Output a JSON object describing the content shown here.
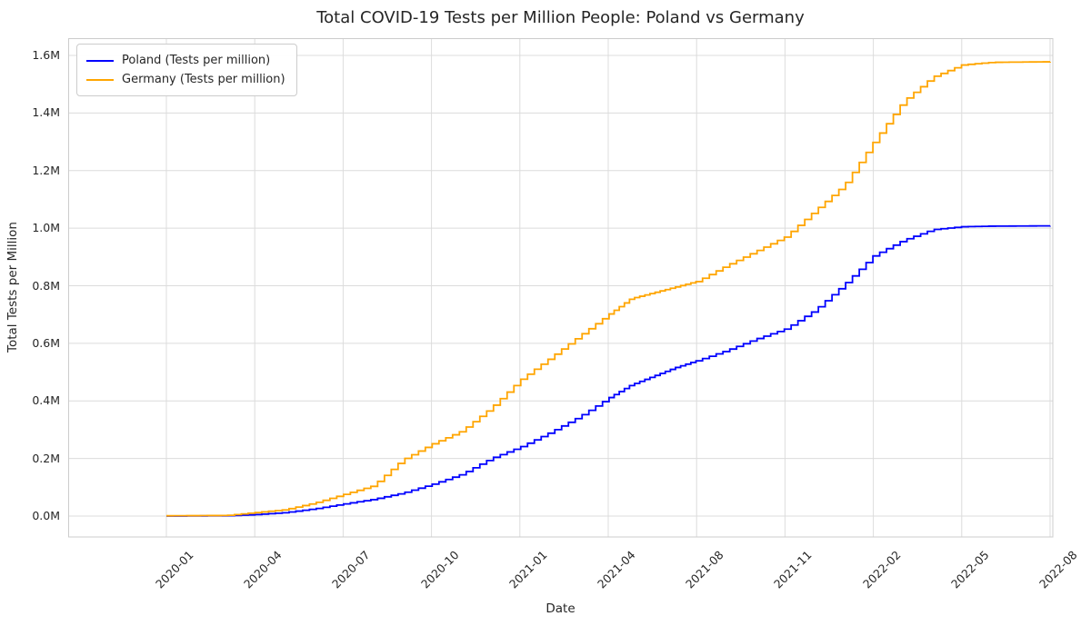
{
  "chart_data": {
    "type": "line",
    "title": "Total COVID-19 Tests per Million People: Poland vs Germany",
    "xlabel": "Date",
    "ylabel": "Total Tests per Million",
    "grid": true,
    "legend_position": "upper left",
    "line_style": "weekly cumulative steps",
    "ylim_millions": [
      -0.07,
      1.66
    ],
    "y_ticks": [
      {
        "label": "0.0M",
        "value": 0.0
      },
      {
        "label": "0.2M",
        "value": 0.2
      },
      {
        "label": "0.4M",
        "value": 0.4
      },
      {
        "label": "0.6M",
        "value": 0.6
      },
      {
        "label": "0.8M",
        "value": 0.8
      },
      {
        "label": "1.0M",
        "value": 1.0
      },
      {
        "label": "1.2M",
        "value": 1.2
      },
      {
        "label": "1.4M",
        "value": 1.4
      },
      {
        "label": "1.6M",
        "value": 1.6
      }
    ],
    "x_ticks": [
      {
        "label": "2020-01",
        "months": 0
      },
      {
        "label": "2020-04",
        "months": 3
      },
      {
        "label": "2020-07",
        "months": 6
      },
      {
        "label": "2020-10",
        "months": 9
      },
      {
        "label": "2021-01",
        "months": 12
      },
      {
        "label": "2021-04",
        "months": 15
      },
      {
        "label": "2021-08",
        "months": 19
      },
      {
        "label": "2021-11",
        "months": 22
      },
      {
        "label": "2022-02",
        "months": 25
      },
      {
        "label": "2022-05",
        "months": 28
      },
      {
        "label": "2022-08",
        "months": 31
      }
    ],
    "series": [
      {
        "name": "Poland (Tests per million)",
        "color": "#0000ff",
        "unit": "tests per million (millions)",
        "points": [
          [
            "2020-01",
            0.0
          ],
          [
            "2020-03",
            0.001
          ],
          [
            "2020-04",
            0.005
          ],
          [
            "2020-05",
            0.012
          ],
          [
            "2020-06",
            0.025
          ],
          [
            "2020-07",
            0.042
          ],
          [
            "2020-08",
            0.058
          ],
          [
            "2020-09",
            0.08
          ],
          [
            "2020-10",
            0.11
          ],
          [
            "2020-11",
            0.145
          ],
          [
            "2020-12",
            0.2
          ],
          [
            "2021-01",
            0.24
          ],
          [
            "2021-02",
            0.29
          ],
          [
            "2021-03",
            0.345
          ],
          [
            "2021-04",
            0.41
          ],
          [
            "2021-05",
            0.455
          ],
          [
            "2021-06",
            0.485
          ],
          [
            "2021-07",
            0.515
          ],
          [
            "2021-08",
            0.54
          ],
          [
            "2021-09",
            0.575
          ],
          [
            "2021-10",
            0.615
          ],
          [
            "2021-11",
            0.65
          ],
          [
            "2021-12",
            0.715
          ],
          [
            "2022-01",
            0.805
          ],
          [
            "2022-02",
            0.905
          ],
          [
            "2022-03",
            0.958
          ],
          [
            "2022-04",
            0.995
          ],
          [
            "2022-05",
            1.005
          ],
          [
            "2022-06",
            1.007
          ],
          [
            "2022-08",
            1.008
          ]
        ]
      },
      {
        "name": "Germany (Tests per million)",
        "color": "#ffa500",
        "unit": "tests per million (millions)",
        "points": [
          [
            "2020-01",
            0.001
          ],
          [
            "2020-03",
            0.002
          ],
          [
            "2020-04",
            0.012
          ],
          [
            "2020-05",
            0.022
          ],
          [
            "2020-06",
            0.045
          ],
          [
            "2020-07",
            0.075
          ],
          [
            "2020-08",
            0.105
          ],
          [
            "2020-09",
            0.195
          ],
          [
            "2020-10",
            0.25
          ],
          [
            "2020-11",
            0.295
          ],
          [
            "2020-12",
            0.375
          ],
          [
            "2021-01",
            0.473
          ],
          [
            "2021-02",
            0.548
          ],
          [
            "2021-03",
            0.625
          ],
          [
            "2021-04",
            0.7
          ],
          [
            "2021-05",
            0.755
          ],
          [
            "2021-06",
            0.775
          ],
          [
            "2021-07",
            0.795
          ],
          [
            "2021-08",
            0.815
          ],
          [
            "2021-09",
            0.87
          ],
          [
            "2021-10",
            0.92
          ],
          [
            "2021-11",
            0.97
          ],
          [
            "2021-12",
            1.06
          ],
          [
            "2022-01",
            1.15
          ],
          [
            "2022-02",
            1.3
          ],
          [
            "2022-03",
            1.44
          ],
          [
            "2022-04",
            1.525
          ],
          [
            "2022-05",
            1.567
          ],
          [
            "2022-06",
            1.576
          ],
          [
            "2022-08",
            1.578
          ]
        ]
      }
    ],
    "colors": {
      "grid": "#dcdcdc",
      "spine": "#cccccc",
      "text": "#262626",
      "background": "#ffffff"
    }
  }
}
